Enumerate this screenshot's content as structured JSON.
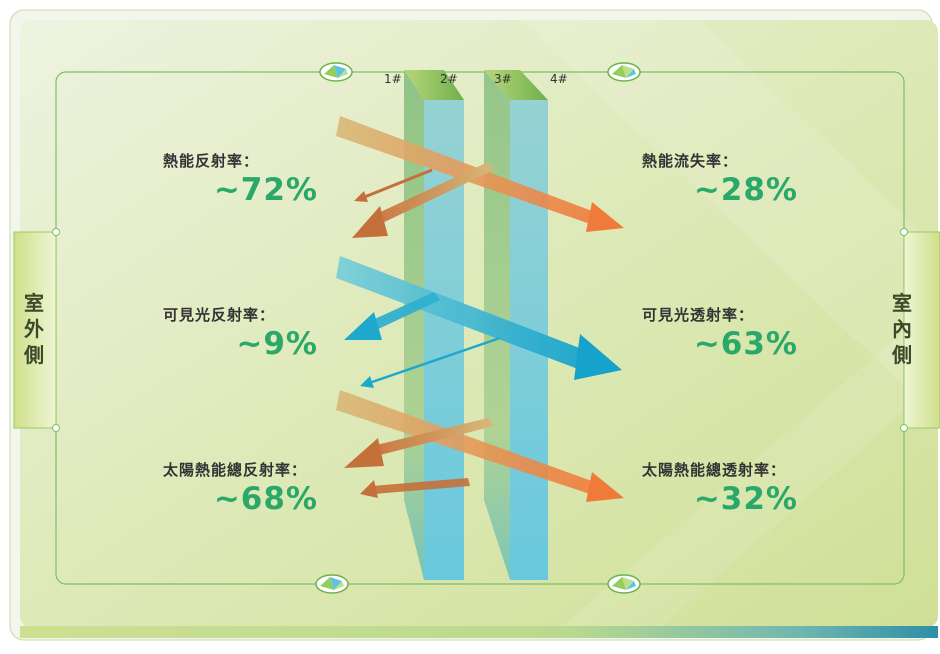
{
  "outdoor_label": "室外側",
  "indoor_label": "室內側",
  "pane_labels": [
    "1#",
    "2#",
    "3#",
    "4#"
  ],
  "outdoor_metrics": [
    {
      "label": "熱能反射率：",
      "value": "~72%"
    },
    {
      "label": "可見光反射率：",
      "value": "~9%"
    },
    {
      "label": "太陽熱能總反射率：",
      "value": "~68%"
    }
  ],
  "indoor_metrics": [
    {
      "label": "熱能流失率：",
      "value": "~28%"
    },
    {
      "label": "可見光透射率：",
      "value": "~63%"
    },
    {
      "label": "太陽熱能總透射率：",
      "value": "~32%"
    }
  ],
  "colors": {
    "heat_arrow": "#e8743a",
    "light_arrow": "#1ea9cc",
    "value_text": "#2aa86a",
    "glass": "#6cc8d8",
    "background": "#d8e8b0"
  }
}
